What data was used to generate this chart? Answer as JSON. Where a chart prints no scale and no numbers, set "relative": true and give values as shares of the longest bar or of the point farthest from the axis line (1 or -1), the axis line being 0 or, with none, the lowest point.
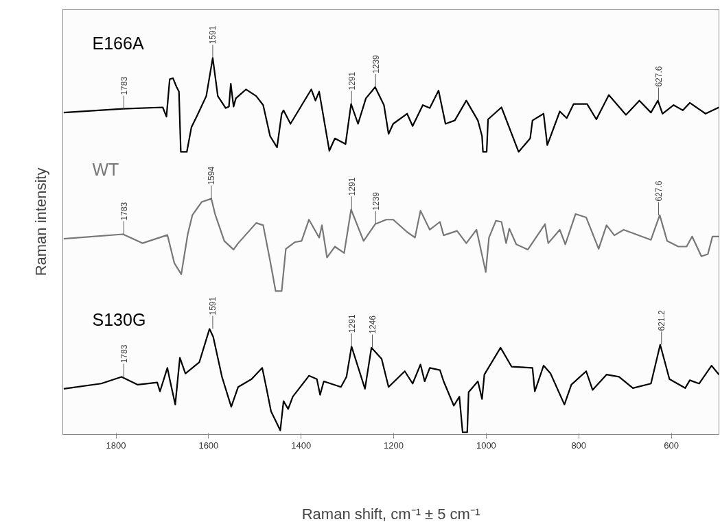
{
  "chart_data": {
    "type": "line",
    "relative": true,
    "xlabel": "Raman shift, cm⁻¹ ± 5 cm⁻¹",
    "ylabel": "Raman intensity",
    "xlim": [
      1915,
      497
    ],
    "xticks": [
      1800,
      1600,
      1400,
      1200,
      1000,
      800,
      600
    ],
    "grid": false,
    "series": [
      {
        "name": "E166A",
        "color": "#000000",
        "x": [
          1913,
          1785,
          1699,
          1691,
          1684,
          1677,
          1669,
          1664,
          1660,
          1647,
          1637,
          1625,
          1605,
          1591,
          1580,
          1563,
          1556,
          1552,
          1546,
          1541,
          1519,
          1497,
          1482,
          1467,
          1452,
          1442,
          1438,
          1423,
          1378,
          1369,
          1361,
          1339,
          1327,
          1304,
          1292,
          1277,
          1260,
          1240,
          1221,
          1211,
          1201,
          1171,
          1159,
          1137,
          1122,
          1103,
          1088,
          1068,
          1043,
          1018,
          1009,
          1007,
          999,
          996,
          967,
          930,
          905,
          900,
          876,
          868,
          841,
          826,
          811,
          782,
          762,
          735,
          698,
          669,
          644,
          629,
          619,
          595,
          575,
          560,
          526,
          497
        ],
        "values": [
          0.854,
          0.864,
          0.868,
          0.843,
          0.943,
          0.946,
          0.922,
          0.91,
          0.749,
          0.749,
          0.815,
          0.845,
          0.898,
          1.0,
          0.898,
          0.866,
          0.87,
          0.931,
          0.87,
          0.892,
          0.916,
          0.898,
          0.874,
          0.791,
          0.761,
          0.851,
          0.86,
          0.824,
          0.916,
          0.886,
          0.91,
          0.752,
          0.785,
          0.77,
          0.877,
          0.824,
          0.892,
          0.922,
          0.874,
          0.797,
          0.824,
          0.851,
          0.818,
          0.874,
          0.866,
          0.913,
          0.824,
          0.833,
          0.886,
          0.833,
          0.791,
          0.749,
          0.749,
          0.836,
          0.868,
          0.749,
          0.785,
          0.833,
          0.851,
          0.767,
          0.857,
          0.839,
          0.877,
          0.877,
          0.836,
          0.901,
          0.848,
          0.886,
          0.854,
          0.886,
          0.851,
          0.874,
          0.86,
          0.88,
          0.851,
          0.868
        ]
      },
      {
        "name": "WT",
        "color": "#777777",
        "x": [
          1913,
          1785,
          1743,
          1689,
          1674,
          1659,
          1645,
          1635,
          1615,
          1594,
          1586,
          1566,
          1546,
          1536,
          1497,
          1482,
          1467,
          1455,
          1442,
          1433,
          1413,
          1399,
          1383,
          1361,
          1355,
          1344,
          1327,
          1307,
          1292,
          1265,
          1240,
          1216,
          1201,
          1171,
          1154,
          1142,
          1122,
          1100,
          1092,
          1063,
          1043,
          1021,
          1001,
          994,
          979,
          967,
          957,
          950,
          935,
          910,
          873,
          866,
          841,
          829,
          807,
          784,
          757,
          740,
          723,
          703,
          644,
          625,
          609,
          585,
          567,
          555,
          535,
          521,
          511,
          497
        ],
        "values": [
          0.517,
          0.529,
          0.505,
          0.527,
          0.452,
          0.422,
          0.529,
          0.58,
          0.615,
          0.624,
          0.583,
          0.511,
          0.488,
          0.505,
          0.559,
          0.553,
          0.458,
          0.377,
          0.377,
          0.49,
          0.508,
          0.511,
          0.568,
          0.52,
          0.553,
          0.467,
          0.496,
          0.479,
          0.595,
          0.511,
          0.556,
          0.568,
          0.568,
          0.535,
          0.52,
          0.592,
          0.541,
          0.562,
          0.526,
          0.538,
          0.505,
          0.541,
          0.428,
          0.52,
          0.565,
          0.562,
          0.505,
          0.544,
          0.502,
          0.488,
          0.556,
          0.505,
          0.541,
          0.502,
          0.583,
          0.574,
          0.49,
          0.553,
          0.526,
          0.541,
          0.514,
          0.58,
          0.511,
          0.496,
          0.496,
          0.523,
          0.47,
          0.476,
          0.523,
          0.523
        ]
      },
      {
        "name": "S130G",
        "color": "#000000",
        "x": [
          1913,
          1832,
          1788,
          1753,
          1711,
          1705,
          1689,
          1684,
          1672,
          1662,
          1650,
          1620,
          1598,
          1590,
          1571,
          1551,
          1536,
          1507,
          1484,
          1475,
          1465,
          1445,
          1438,
          1428,
          1418,
          1383,
          1366,
          1359,
          1351,
          1314,
          1302,
          1291,
          1262,
          1248,
          1226,
          1211,
          1176,
          1159,
          1142,
          1133,
          1122,
          1100,
          1092,
          1070,
          1058,
          1051,
          1041,
          1038,
          1018,
          1009,
          1004,
          969,
          945,
          900,
          895,
          876,
          861,
          831,
          816,
          784,
          770,
          740,
          713,
          683,
          644,
          624,
          604,
          570,
          560,
          540,
          513,
          497
        ],
        "values": [
          0.116,
          0.13,
          0.148,
          0.127,
          0.133,
          0.109,
          0.172,
          0.142,
          0.074,
          0.199,
          0.157,
          0.187,
          0.276,
          0.255,
          0.148,
          0.068,
          0.121,
          0.142,
          0.172,
          0.118,
          0.056,
          0.005,
          0.083,
          0.062,
          0.095,
          0.151,
          0.142,
          0.1,
          0.136,
          0.121,
          0.148,
          0.229,
          0.116,
          0.226,
          0.196,
          0.121,
          0.163,
          0.13,
          0.181,
          0.136,
          0.172,
          0.166,
          0.136,
          0.071,
          0.095,
          0.0,
          0.0,
          0.107,
          0.136,
          0.089,
          0.154,
          0.226,
          0.175,
          0.172,
          0.109,
          0.178,
          0.157,
          0.074,
          0.127,
          0.163,
          0.113,
          0.154,
          0.148,
          0.118,
          0.13,
          0.234,
          0.142,
          0.118,
          0.139,
          0.13,
          0.178,
          0.154
        ]
      }
    ],
    "annotations": [
      {
        "text": "1783",
        "x": 1783,
        "y": 0.864
      },
      {
        "text": "1591",
        "x": 1591,
        "y": 1.0
      },
      {
        "text": "1291",
        "x": 1291,
        "y": 0.877
      },
      {
        "text": "1239",
        "x": 1239,
        "y": 0.922
      },
      {
        "text": "627.6",
        "x": 627.6,
        "y": 0.886
      },
      {
        "text": "1783",
        "x": 1783,
        "y": 0.529
      },
      {
        "text": "1594",
        "x": 1594,
        "y": 0.624
      },
      {
        "text": "1291",
        "x": 1291,
        "y": 0.595
      },
      {
        "text": "1239",
        "x": 1239,
        "y": 0.556
      },
      {
        "text": "627.6",
        "x": 627.6,
        "y": 0.58
      },
      {
        "text": "1783",
        "x": 1783,
        "y": 0.148
      },
      {
        "text": "1591",
        "x": 1591,
        "y": 0.276
      },
      {
        "text": "1291",
        "x": 1291,
        "y": 0.229
      },
      {
        "text": "1246",
        "x": 1246,
        "y": 0.226
      },
      {
        "text": "621.2",
        "x": 621.2,
        "y": 0.234
      }
    ]
  }
}
